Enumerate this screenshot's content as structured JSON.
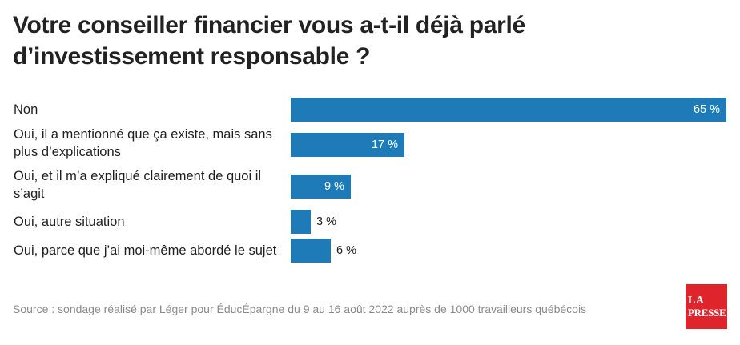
{
  "title": "Votre conseiller financier vous a-t-il déjà parlé d’investissement responsable ?",
  "source": "Source : sondage réalisé par Léger pour ÉducÉpargne du 9 au 16 août 2022 auprès de 1000 travailleurs québécois",
  "logo": {
    "line1": "LA",
    "line2": "PRESSE"
  },
  "colors": {
    "bar": "#1f7ab8",
    "logo": "#e0242b",
    "text": "#1f1f1f",
    "source": "#8a8a8a"
  },
  "chart_data": {
    "type": "bar",
    "orientation": "horizontal",
    "categories": [
      "Non",
      "Oui, il a mentionné que ça existe, mais sans plus d’explications",
      "Oui, et il m’a expliqué clairement de quoi il s’agit",
      "Oui, autre situation",
      "Oui, parce que j’ai moi-même abordé le sujet"
    ],
    "values": [
      65,
      17,
      9,
      3,
      6
    ],
    "value_labels": [
      "65 %",
      "17 %",
      "9 %",
      "3 %",
      "6 %"
    ],
    "xlim": [
      0,
      65
    ],
    "grid": false,
    "legend": "none"
  }
}
